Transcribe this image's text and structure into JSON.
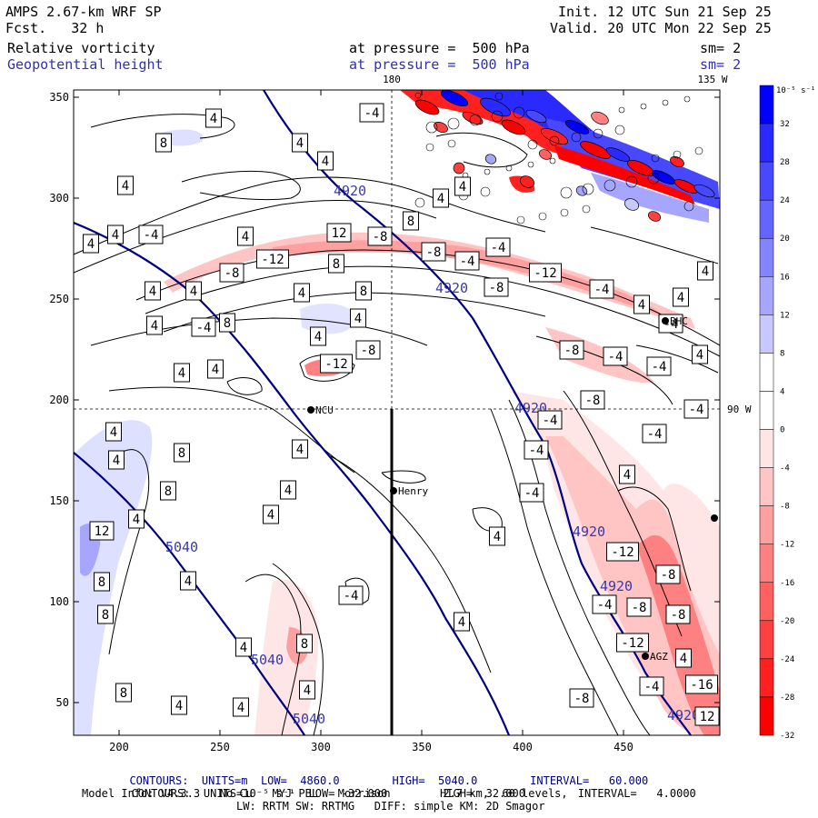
{
  "header": {
    "model": "AMPS 2.67-km WRF SP",
    "forecast": "Fcst.   32 h",
    "init": "Init. 12 UTC Sun 21 Sep 25",
    "valid": "Valid. 20 UTC Mon 22 Sep 25",
    "field1_name": "Relative vorticity",
    "field1_level": "at pressure =  500 hPa",
    "field1_smooth": "sm= 2",
    "field2_name": "Geopotential height",
    "field2_level": "at pressure =  500 hPa",
    "field2_smooth": "sm= 2"
  },
  "map": {
    "x_ticks": [
      "200",
      "250",
      "300",
      "350",
      "400",
      "450"
    ],
    "y_ticks": [
      "350",
      "300",
      "250",
      "200",
      "150",
      "100",
      "50"
    ],
    "meridian_180": "180",
    "meridian_135w": "135 W",
    "meridian_90w": "90 W",
    "stations": [
      "NCU",
      "Henry",
      "BHC",
      "AGZ"
    ],
    "height_labels": [
      "4920",
      "4920",
      "4920",
      "4920",
      "4920",
      "4920",
      "5040",
      "5040",
      "5040"
    ],
    "vort_labels": [
      "4",
      "8",
      "4",
      "4",
      "4",
      "4",
      "-4",
      "4",
      "4",
      "-4",
      "4",
      "4",
      "8",
      "4",
      "4",
      "-4",
      "8",
      "4",
      "4",
      "4",
      "4",
      "8",
      "8",
      "4",
      "4",
      "4",
      "4",
      "8",
      "8",
      "4",
      "12",
      "4",
      "8",
      "8",
      "8",
      "4",
      "4",
      "4",
      "4",
      "4",
      "4",
      "4",
      "4",
      "4",
      "-4",
      "-8",
      "-12",
      "12",
      "-8",
      "-8",
      "-12",
      "-8",
      "-4",
      "-12",
      "-8",
      "-4",
      "-4",
      "-8",
      "-4",
      "4",
      "4",
      "-4",
      "-4",
      "4",
      "-8",
      "-4",
      "4",
      "-4",
      "-4",
      "-4",
      "-4",
      "-12",
      "-8",
      "-8",
      "-8",
      "-12",
      "-16",
      "-4",
      "-4",
      "-8",
      "4",
      "4",
      "12",
      "8",
      "-8"
    ]
  },
  "colorbar": {
    "unit": "10⁻⁵ s⁻¹",
    "labels": [
      "32",
      "28",
      "24",
      "20",
      "16",
      "12",
      "8",
      "4",
      "0",
      "-4",
      "-8",
      "-12",
      "-16",
      "-20",
      "-24",
      "-28",
      "-32"
    ],
    "colors": [
      "#0000ff",
      "#2a2aff",
      "#4848ff",
      "#6464ff",
      "#8484ff",
      "#a6a6ff",
      "#c8c8ff",
      "#ffffff",
      "#ffffff",
      "#ffe6e6",
      "#ffc4c4",
      "#ffa0a0",
      "#ff8080",
      "#ff6060",
      "#ff4040",
      "#ff2020",
      "#ff0000"
    ]
  },
  "footer": {
    "line1_a": "CONTOURS:  UNITS=m  LOW=  4860.0",
    "line1_b": "HIGH=  5040.0",
    "line1_c": "INTERVAL=   60.000",
    "line2_a": "CONTOURS:  UNITS=10⁻⁵ s⁻¹  LOW= -32.000",
    "line2_b": "HIGH=  32.000",
    "line2_c": "INTERVAL=   4.0000",
    "line3": "Model Info: V4.3.3   No Cu   MYJ PBL   Morrison        2.7 km,  60 levels,",
    "line4": "LW: RRTM SW: RRTMG   DIFF: simple KM: 2D Smagor"
  }
}
